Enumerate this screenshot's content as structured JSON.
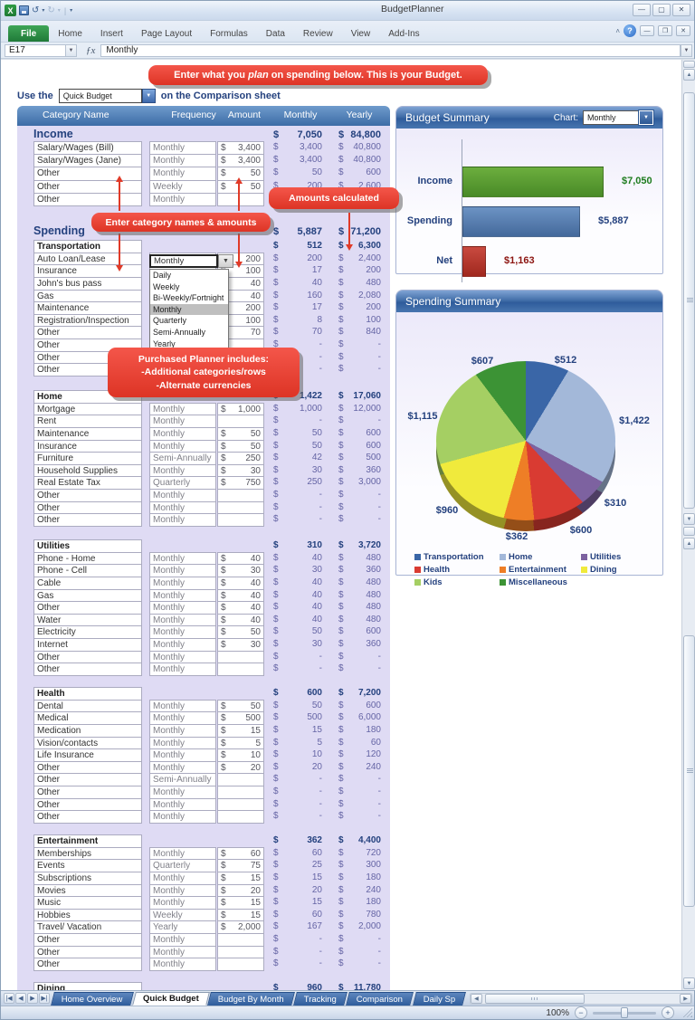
{
  "window": {
    "title": "BudgetPlanner"
  },
  "ribbon": {
    "tabs": [
      "File",
      "Home",
      "Insert",
      "Page Layout",
      "Formulas",
      "Data",
      "Review",
      "View",
      "Add-Ins"
    ],
    "active_tab": "File"
  },
  "formula_bar": {
    "cell_ref": "E17",
    "fx_icon": "ƒx",
    "value": "Monthly"
  },
  "callouts": {
    "top": {
      "pre": "Enter what you ",
      "em": "plan",
      "post": " on spending below.  This is your Budget."
    },
    "amounts": "Amounts calculated",
    "names": "Enter category names & amounts",
    "planner": [
      "Purchased Planner includes:",
      "-Additional categories/rows",
      "-Alternate currencies"
    ]
  },
  "use_row": {
    "prefix": "Use the",
    "dropdown_value": "Quick Budget",
    "suffix": "on the Comparison sheet"
  },
  "table": {
    "headers": [
      "Category Name",
      "Frequency",
      "Amount",
      "Monthly",
      "Yearly"
    ],
    "income": {
      "label": "Income",
      "monthly": "7,050",
      "yearly": "84,800",
      "rows": [
        [
          "Salary/Wages (Bill)",
          "Monthly",
          "3,400",
          "3,400",
          "40,800"
        ],
        [
          "Salary/Wages (Jane)",
          "Monthly",
          "3,400",
          "3,400",
          "40,800"
        ],
        [
          "Other",
          "Monthly",
          "50",
          "50",
          "600"
        ],
        [
          "Other",
          "Weekly",
          "50",
          "200",
          "2,600"
        ],
        [
          "Other",
          "Monthly",
          "",
          "-",
          "-"
        ]
      ]
    },
    "spending": {
      "label": "Spending",
      "monthly": "5,887",
      "yearly": "71,200"
    },
    "sections": [
      {
        "name": "Transportation",
        "monthly": "512",
        "yearly": "6,300",
        "rows": [
          [
            "Auto Loan/Lease",
            "",
            "200",
            "200",
            "2,400"
          ],
          [
            "Insurance",
            "",
            "100",
            "17",
            "200"
          ],
          [
            "John's bus pass",
            "",
            "40",
            "40",
            "480"
          ],
          [
            "Gas",
            "",
            "40",
            "160",
            "2,080"
          ],
          [
            "Maintenance",
            "",
            "200",
            "17",
            "200"
          ],
          [
            "Registration/Inspection",
            "",
            "100",
            "8",
            "100"
          ],
          [
            "Other",
            "Monthly",
            "70",
            "70",
            "840"
          ],
          [
            "Other",
            "Monthly",
            "",
            "-",
            "-"
          ],
          [
            "Other",
            "",
            "",
            "-",
            "-"
          ],
          [
            "Other",
            "",
            "",
            "-",
            "-"
          ]
        ]
      },
      {
        "name": "Home",
        "monthly": "1,422",
        "yearly": "17,060",
        "rows": [
          [
            "Mortgage",
            "Monthly",
            "1,000",
            "1,000",
            "12,000"
          ],
          [
            "Rent",
            "Monthly",
            "",
            "-",
            "-"
          ],
          [
            "Maintenance",
            "Monthly",
            "50",
            "50",
            "600"
          ],
          [
            "Insurance",
            "Monthly",
            "50",
            "50",
            "600"
          ],
          [
            "Furniture",
            "Semi-Annually",
            "250",
            "42",
            "500"
          ],
          [
            "Household Supplies",
            "Monthly",
            "30",
            "30",
            "360"
          ],
          [
            "Real Estate Tax",
            "Quarterly",
            "750",
            "250",
            "3,000"
          ],
          [
            "Other",
            "Monthly",
            "",
            "-",
            "-"
          ],
          [
            "Other",
            "Monthly",
            "",
            "-",
            "-"
          ],
          [
            "Other",
            "Monthly",
            "",
            "-",
            "-"
          ]
        ]
      },
      {
        "name": "Utilities",
        "monthly": "310",
        "yearly": "3,720",
        "rows": [
          [
            "Phone - Home",
            "Monthly",
            "40",
            "40",
            "480"
          ],
          [
            "Phone - Cell",
            "Monthly",
            "30",
            "30",
            "360"
          ],
          [
            "Cable",
            "Monthly",
            "40",
            "40",
            "480"
          ],
          [
            "Gas",
            "Monthly",
            "40",
            "40",
            "480"
          ],
          [
            "Other",
            "Monthly",
            "40",
            "40",
            "480"
          ],
          [
            "Water",
            "Monthly",
            "40",
            "40",
            "480"
          ],
          [
            "Electricity",
            "Monthly",
            "50",
            "50",
            "600"
          ],
          [
            "Internet",
            "Monthly",
            "30",
            "30",
            "360"
          ],
          [
            "Other",
            "Monthly",
            "",
            "-",
            "-"
          ],
          [
            "Other",
            "Monthly",
            "",
            "-",
            "-"
          ]
        ]
      },
      {
        "name": "Health",
        "monthly": "600",
        "yearly": "7,200",
        "rows": [
          [
            "Dental",
            "Monthly",
            "50",
            "50",
            "600"
          ],
          [
            "Medical",
            "Monthly",
            "500",
            "500",
            "6,000"
          ],
          [
            "Medication",
            "Monthly",
            "15",
            "15",
            "180"
          ],
          [
            "Vision/contacts",
            "Monthly",
            "5",
            "5",
            "60"
          ],
          [
            "Life Insurance",
            "Monthly",
            "10",
            "10",
            "120"
          ],
          [
            "Other",
            "Monthly",
            "20",
            "20",
            "240"
          ],
          [
            "Other",
            "Semi-Annually",
            "",
            "-",
            "-"
          ],
          [
            "Other",
            "Monthly",
            "",
            "-",
            "-"
          ],
          [
            "Other",
            "Monthly",
            "",
            "-",
            "-"
          ],
          [
            "Other",
            "Monthly",
            "",
            "-",
            "-"
          ]
        ]
      },
      {
        "name": "Entertainment",
        "monthly": "362",
        "yearly": "4,400",
        "rows": [
          [
            "Memberships",
            "Monthly",
            "60",
            "60",
            "720"
          ],
          [
            "Events",
            "Quarterly",
            "75",
            "25",
            "300"
          ],
          [
            "Subscriptions",
            "Monthly",
            "15",
            "15",
            "180"
          ],
          [
            "Movies",
            "Monthly",
            "20",
            "20",
            "240"
          ],
          [
            "Music",
            "Monthly",
            "15",
            "15",
            "180"
          ],
          [
            "Hobbies",
            "Weekly",
            "15",
            "60",
            "780"
          ],
          [
            "Travel/ Vacation",
            "Yearly",
            "2,000",
            "167",
            "2,000"
          ],
          [
            "Other",
            "Monthly",
            "",
            "-",
            "-"
          ],
          [
            "Other",
            "Monthly",
            "",
            "-",
            "-"
          ],
          [
            "Other",
            "Monthly",
            "",
            "-",
            "-"
          ]
        ]
      },
      {
        "name": "Dining",
        "monthly": "960",
        "yearly": "11,780",
        "rows": []
      }
    ]
  },
  "freq_dropdown": {
    "value": "Monthly",
    "selected": "Monthly",
    "options": [
      "Daily",
      "Weekly",
      "Bi-Weekly/Fortnight",
      "Monthly",
      "Quarterly",
      "Semi-Annually",
      "Yearly"
    ]
  },
  "budget_summary": {
    "title": "Budget Summary",
    "chart_label": "Chart:",
    "chart_value": "Monthly",
    "bars": [
      {
        "label": "Income",
        "value": 7050,
        "display": "$7,050",
        "fill1": "#6CAE3E",
        "fill2": "#498A27",
        "value_color": "#1E7C1E"
      },
      {
        "label": "Spending",
        "value": 5887,
        "display": "$5,887",
        "fill1": "#6C93C4",
        "fill2": "#44699B",
        "value_color": "#24417E"
      },
      {
        "label": "Net",
        "value": 1163,
        "display": "$1,163",
        "fill1": "#C94A40",
        "fill2": "#A0281E",
        "value_color": "#8C1410"
      }
    ]
  },
  "spending_summary": {
    "title": "Spending Summary",
    "slices": [
      {
        "name": "Transportation",
        "value": 512,
        "display": "$512",
        "color": "#3A66A7"
      },
      {
        "name": "Home",
        "value": 1422,
        "display": "$1,422",
        "color": "#A3B8D9"
      },
      {
        "name": "Utilities",
        "value": 310,
        "display": "$310",
        "color": "#7D62A0"
      },
      {
        "name": "Health",
        "value": 600,
        "display": "$600",
        "color": "#D93B32"
      },
      {
        "name": "Entertainment",
        "value": 362,
        "display": "$362",
        "color": "#EE7E26"
      },
      {
        "name": "Dining",
        "value": 960,
        "display": "$960",
        "color": "#F0EA3C"
      },
      {
        "name": "Kids",
        "value": 1115,
        "display": "$1,115",
        "color": "#A5CF63"
      },
      {
        "name": "Miscellaneous",
        "value": 607,
        "display": "$607",
        "color": "#3C9335"
      }
    ]
  },
  "sheet_tabs": [
    {
      "label": "Home  Overview",
      "active": false
    },
    {
      "label": "Quick Budget",
      "active": true
    },
    {
      "label": "Budget By Month",
      "active": false
    },
    {
      "label": "Tracking",
      "active": false
    },
    {
      "label": "Comparison",
      "active": false
    },
    {
      "label": "Daily Sp",
      "active": false
    }
  ],
  "status_bar": {
    "zoom": "100%"
  },
  "chart_data": [
    {
      "type": "bar",
      "title": "Budget Summary (Monthly)",
      "categories": [
        "Income",
        "Spending",
        "Net"
      ],
      "values": [
        7050,
        5887,
        1163
      ],
      "labels": [
        "$7,050",
        "$5,887",
        "$1,163"
      ],
      "orientation": "horizontal",
      "xlim": [
        0,
        7050
      ]
    },
    {
      "type": "pie",
      "title": "Spending Summary",
      "categories": [
        "Transportation",
        "Home",
        "Utilities",
        "Health",
        "Entertainment",
        "Dining",
        "Kids",
        "Miscellaneous"
      ],
      "values": [
        512,
        1422,
        310,
        600,
        362,
        960,
        1115,
        607
      ],
      "labels": [
        "$512",
        "$1,422",
        "$310",
        "$600",
        "$362",
        "$960",
        "$1,115",
        "$607"
      ],
      "legend_position": "bottom"
    }
  ]
}
